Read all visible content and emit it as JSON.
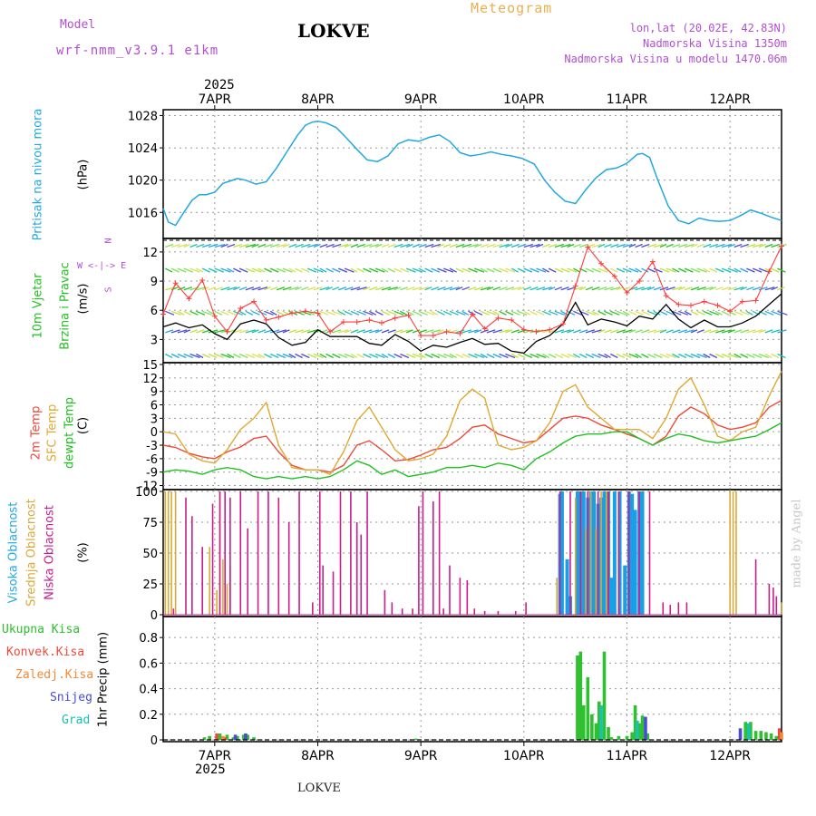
{
  "header": {
    "model_label": "Model",
    "model_name": "wrf-nmm_v3.9.1 e1km",
    "station": "LOKVE",
    "title": "Meteogram",
    "lonlat": "lon,lat (20.02E, 42.83N)",
    "elevation": "Nadmorska Visina 1350m",
    "model_elevation": "Nadmorska Visina u modelu 1470.06m",
    "footer_station": "LOKVE",
    "watermark": "made by Angel",
    "colors": {
      "model": "#b050d0",
      "title": "#e8b050",
      "lonlat": "#b050d0"
    }
  },
  "axis": {
    "year_top": "2025",
    "year_bottom": "2025",
    "date_labels": [
      "7APR",
      "8APR",
      "9APR",
      "10APR",
      "11APR",
      "12APR"
    ]
  },
  "panel_labels": {
    "pressure": {
      "name": "Pritisak na nivou mora",
      "unit": "(hPa)"
    },
    "wind": {
      "name1": "10m Vjetar",
      "name2": "Brzina i Pravac",
      "unit": "(m/s)",
      "compass_n": "N",
      "compass_s": "S",
      "compass_we": "W <-|-> E",
      "compass_left": "W",
      "compass_right": "E"
    },
    "temp": {
      "name1": "2m Temp",
      "name2": "SFC Temp",
      "name3": "dewpt Temp",
      "unit": "(C)"
    },
    "cloud": {
      "name1": "Visoka Oblacnost",
      "name2": "Srednja Oblacnost",
      "name3": "Niska Oblacnost",
      "unit": "(%)"
    },
    "precip": {
      "legend": [
        "Ukupna Kisa",
        "Konvek.Kisa",
        "Zaledj.Kisa",
        "Snijeg",
        "Grad"
      ],
      "unit": "1hr Precip (mm)"
    }
  },
  "chart_data": [
    {
      "type": "line",
      "panel": "pressure",
      "xlabel": "",
      "ylabel": "(hPa)",
      "x_days": [
        6.5,
        6.55,
        6.62,
        6.7,
        6.78,
        6.85,
        6.92,
        7.0,
        7.08,
        7.15,
        7.22,
        7.3,
        7.4,
        7.5,
        7.6,
        7.7,
        7.8,
        7.88,
        7.95,
        8.0,
        8.08,
        8.18,
        8.28,
        8.38,
        8.48,
        8.58,
        8.68,
        8.78,
        8.88,
        8.98,
        9.08,
        9.18,
        9.28,
        9.38,
        9.48,
        9.58,
        9.68,
        9.78,
        9.88,
        9.98,
        10.1,
        10.2,
        10.3,
        10.4,
        10.5,
        10.6,
        10.7,
        10.8,
        10.9,
        11.0,
        11.1,
        11.15,
        11.22,
        11.3,
        11.4,
        11.5,
        11.6,
        11.7,
        11.8,
        11.9,
        12.0,
        12.1,
        12.2,
        12.3,
        12.4,
        12.5
      ],
      "series": [
        {
          "values": [
            1016.5,
            1014.8,
            1014.4,
            1016.0,
            1017.5,
            1018.2,
            1018.2,
            1018.5,
            1019.6,
            1019.9,
            1020.2,
            1020.0,
            1019.5,
            1019.8,
            1021.5,
            1023.5,
            1025.5,
            1026.8,
            1027.2,
            1027.3,
            1027.1,
            1026.5,
            1025.2,
            1023.8,
            1022.5,
            1022.3,
            1023.0,
            1024.5,
            1025.0,
            1024.8,
            1025.3,
            1025.6,
            1024.8,
            1023.4,
            1023.0,
            1023.2,
            1023.5,
            1023.2,
            1023.0,
            1022.7,
            1022.0,
            1020.0,
            1018.5,
            1017.4,
            1017.1,
            1018.8,
            1020.3,
            1021.3,
            1021.5,
            1022.1,
            1023.2,
            1023.3,
            1022.8,
            1020.0,
            1016.8,
            1015.0,
            1014.6,
            1015.3,
            1015.0,
            1014.9,
            1015.0,
            1015.6,
            1016.3,
            1015.9,
            1015.4,
            1015.0
          ]
        }
      ],
      "ylim": [
        1013,
        1028.5
      ],
      "yticks": [
        1016,
        1020,
        1024,
        1028
      ],
      "color": "#22a8e0"
    },
    {
      "type": "line",
      "panel": "wind",
      "ylabel": "(m/s)",
      "x_days": [
        6.5,
        6.62,
        6.75,
        6.88,
        7.0,
        7.12,
        7.25,
        7.38,
        7.5,
        7.62,
        7.75,
        7.88,
        8.0,
        8.12,
        8.25,
        8.38,
        8.5,
        8.62,
        8.75,
        8.88,
        9.0,
        9.12,
        9.25,
        9.38,
        9.5,
        9.62,
        9.75,
        9.88,
        10.0,
        10.12,
        10.25,
        10.38,
        10.5,
        10.62,
        10.75,
        10.88,
        11.0,
        11.12,
        11.25,
        11.38,
        11.5,
        11.62,
        11.75,
        11.88,
        12.0,
        12.12,
        12.25,
        12.38,
        12.5
      ],
      "series": [
        {
          "name": "",
          "color": "#000000",
          "values": [
            4.3,
            4.7,
            4.2,
            4.5,
            3.6,
            3.0,
            4.6,
            5.0,
            4.6,
            3.2,
            2.4,
            2.7,
            4.0,
            3.3,
            3.3,
            3.3,
            2.6,
            2.4,
            3.5,
            2.8,
            1.8,
            2.4,
            2.2,
            2.7,
            3.1,
            2.5,
            2.6,
            1.8,
            1.6,
            2.8,
            3.4,
            4.6,
            6.8,
            4.5,
            5.1,
            4.8,
            4.4,
            5.4,
            5.1,
            6.6,
            5.1,
            4.2,
            5.0,
            4.3,
            4.3,
            4.7,
            5.4,
            6.6,
            7.7
          ]
        },
        {
          "name": "",
          "color": "#ff3b3b",
          "values": [
            5.6,
            8.8,
            7.2,
            9.1,
            5.4,
            3.8,
            6.2,
            6.9,
            5.0,
            5.3,
            5.7,
            5.9,
            5.7,
            3.8,
            4.8,
            4.8,
            5.0,
            4.7,
            5.2,
            5.5,
            3.4,
            3.4,
            3.8,
            3.6,
            5.6,
            4.1,
            5.2,
            5.0,
            4.0,
            3.8,
            4.0,
            4.6,
            8.5,
            12.5,
            10.8,
            9.5,
            7.8,
            9.0,
            11.0,
            7.5,
            6.6,
            6.5,
            6.9,
            6.5,
            5.9,
            6.9,
            7.0,
            10.0,
            12.6
          ]
        }
      ],
      "ylim": [
        0.8,
        13.2
      ],
      "yticks": [
        3,
        6,
        9,
        12
      ]
    },
    {
      "type": "line",
      "panel": "temperature",
      "ylabel": "(C)",
      "x_days": [
        6.5,
        6.62,
        6.75,
        6.88,
        7.0,
        7.12,
        7.25,
        7.38,
        7.5,
        7.62,
        7.75,
        7.88,
        8.0,
        8.12,
        8.25,
        8.38,
        8.5,
        8.62,
        8.75,
        8.88,
        9.0,
        9.12,
        9.25,
        9.38,
        9.5,
        9.62,
        9.75,
        9.88,
        10.0,
        10.12,
        10.25,
        10.38,
        10.5,
        10.62,
        10.75,
        10.88,
        11.0,
        11.12,
        11.25,
        11.38,
        11.5,
        11.62,
        11.75,
        11.88,
        12.0,
        12.12,
        12.25,
        12.38,
        12.5
      ],
      "series": [
        {
          "name": "2m Temp",
          "color": "#ee4a3a",
          "values": [
            -3.0,
            -3.5,
            -4.8,
            -5.6,
            -6.0,
            -4.5,
            -3.4,
            -1.5,
            -1.0,
            -4.5,
            -7.5,
            -8.5,
            -8.5,
            -9.0,
            -7.5,
            -3.0,
            -2.0,
            -4.0,
            -6.5,
            -6.2,
            -5.2,
            -4.0,
            -3.5,
            -1.5,
            1.0,
            1.5,
            -0.5,
            -1.5,
            -2.5,
            -2.0,
            0.5,
            3.0,
            3.5,
            3.0,
            1.5,
            0.5,
            -0.5,
            -1.5,
            -3.0,
            -1.0,
            3.5,
            5.5,
            4.0,
            1.5,
            0.5,
            1.0,
            2.0,
            5.5,
            7.0
          ]
        },
        {
          "name": "SFC Temp",
          "color": "#e0a832",
          "values": [
            0.0,
            -0.5,
            -5.0,
            -6.5,
            -7.0,
            -4.0,
            0.5,
            3.0,
            6.5,
            -3.0,
            -8.0,
            -8.5,
            -8.5,
            -9.5,
            -4.5,
            2.5,
            5.5,
            1.0,
            -4.0,
            -6.5,
            -6.0,
            -5.0,
            -1.0,
            7.0,
            9.5,
            7.5,
            -3.0,
            -4.0,
            -3.5,
            -2.0,
            2.0,
            9.0,
            10.5,
            5.5,
            3.0,
            0.5,
            0.5,
            0.5,
            -1.5,
            3.0,
            9.5,
            12.0,
            6.0,
            -1.0,
            -2.0,
            0.0,
            1.0,
            8.0,
            13.5
          ]
        },
        {
          "name": "dewpt Temp",
          "color": "#22c022",
          "values": [
            -9.0,
            -8.5,
            -8.8,
            -9.5,
            -8.5,
            -8.0,
            -8.5,
            -10.0,
            -10.5,
            -10.0,
            -10.5,
            -10.0,
            -10.5,
            -10.0,
            -8.5,
            -6.5,
            -7.5,
            -9.5,
            -8.5,
            -10.0,
            -9.5,
            -9.0,
            -8.0,
            -8.0,
            -7.5,
            -8.0,
            -7.0,
            -7.5,
            -8.5,
            -6.0,
            -4.5,
            -2.5,
            -1.0,
            -0.5,
            -0.5,
            0.0,
            0.0,
            -1.5,
            -3.0,
            -1.5,
            -0.5,
            -1.0,
            -2.0,
            -2.5,
            -2.0,
            -1.5,
            -1.0,
            0.5,
            2.0
          ]
        }
      ],
      "ylim": [
        -12.5,
        15
      ],
      "yticks": [
        -12,
        -9,
        -6,
        -3,
        0,
        3,
        6,
        9,
        12,
        15
      ]
    },
    {
      "type": "bar",
      "panel": "cloud",
      "ylabel": "(%)",
      "ylim": [
        0,
        100
      ],
      "yticks": [
        0,
        25,
        50,
        75,
        100
      ],
      "series": [
        {
          "name": "Visoka Oblacnost",
          "color": "#1a9ee6",
          "x_days": [
            10.35,
            10.37,
            10.42,
            10.45,
            10.52,
            10.55,
            10.58,
            10.62,
            10.65,
            10.68,
            10.72,
            10.75,
            10.78,
            10.82,
            10.85,
            10.88,
            10.93,
            10.98,
            11.02,
            11.05,
            11.08,
            11.12,
            11.15
          ],
          "values": [
            98,
            100,
            45,
            15,
            100,
            100,
            100,
            95,
            100,
            100,
            90,
            95,
            100,
            100,
            30,
            100,
            100,
            40,
            100,
            98,
            85,
            100,
            100
          ]
        },
        {
          "name": "Srednja Oblacnost",
          "color": "#d8aa3a",
          "x_days": [
            6.52,
            6.55,
            6.58,
            6.62,
            6.95,
            7.02,
            7.05,
            7.08,
            7.12,
            7.15,
            10.32,
            10.5,
            10.55,
            10.6,
            10.65,
            10.7,
            10.75,
            10.8,
            12.0,
            12.03,
            12.06,
            12.5
          ],
          "values": [
            100,
            100,
            100,
            100,
            55,
            20,
            100,
            45,
            25,
            40,
            30,
            95,
            100,
            70,
            100,
            70,
            100,
            100,
            100,
            100,
            100,
            10
          ]
        },
        {
          "name": "Niska Oblacnost",
          "color": "#c81e8c",
          "x_days": [
            6.6,
            6.72,
            6.78,
            6.88,
            6.98,
            7.05,
            7.1,
            7.15,
            7.25,
            7.32,
            7.42,
            7.52,
            7.62,
            7.72,
            7.82,
            7.95,
            8.02,
            8.05,
            8.15,
            8.22,
            8.32,
            8.38,
            8.42,
            8.48,
            8.65,
            8.72,
            8.82,
            8.92,
            8.98,
            9.02,
            9.12,
            9.18,
            9.22,
            9.28,
            9.38,
            9.45,
            9.52,
            9.62,
            9.75,
            9.92,
            10.02,
            10.35,
            10.45,
            10.55,
            10.62,
            10.72,
            10.82,
            10.92,
            11.02,
            11.12,
            11.22,
            11.35,
            11.42,
            11.5,
            11.58,
            12.25,
            12.38,
            12.42,
            12.45
          ],
          "values": [
            5,
            95,
            80,
            55,
            90,
            100,
            100,
            95,
            100,
            70,
            100,
            100,
            95,
            75,
            100,
            10,
            100,
            40,
            35,
            100,
            100,
            75,
            65,
            100,
            20,
            10,
            5,
            5,
            88,
            100,
            92,
            100,
            5,
            40,
            30,
            28,
            5,
            3,
            3,
            3,
            10,
            100,
            100,
            100,
            100,
            100,
            100,
            100,
            100,
            100,
            100,
            10,
            8,
            10,
            10,
            45,
            25,
            22,
            15
          ]
        }
      ]
    },
    {
      "type": "bar",
      "panel": "precip",
      "ylabel": "1hr Precip (mm)",
      "ylim": [
        0,
        0.95
      ],
      "yticks": [
        0,
        0.2,
        0.4,
        0.6,
        0.8
      ],
      "series": [
        {
          "name": "Ukupna Kisa",
          "color": "#2ec02e",
          "x_days": [
            6.9,
            6.95,
            7.05,
            7.12,
            7.18,
            7.22,
            7.28,
            7.32,
            7.38,
            8.95,
            10.52,
            10.55,
            10.58,
            10.62,
            10.66,
            10.7,
            10.73,
            10.78,
            10.82,
            10.85,
            10.92,
            11.0,
            11.05,
            11.08,
            11.12,
            11.15,
            11.2,
            12.15,
            12.2,
            12.25,
            12.3,
            12.35,
            12.4,
            12.45
          ],
          "values": [
            0.02,
            0.03,
            0.05,
            0.04,
            0.02,
            0.03,
            0.04,
            0.04,
            0.02,
            0.01,
            0.66,
            0.69,
            0.27,
            0.49,
            0.2,
            0.13,
            0.3,
            0.69,
            0.1,
            0.02,
            0.03,
            0.03,
            0.06,
            0.27,
            0.13,
            0.19,
            0.05,
            0.14,
            0.14,
            0.07,
            0.07,
            0.06,
            0.05,
            0.03
          ]
        },
        {
          "name": "Konvek.Kisa",
          "color": "#ee4a3a",
          "x_days": [
            7.02,
            7.1,
            12.48
          ],
          "values": [
            0.05,
            0.02,
            0.09
          ]
        },
        {
          "name": "Zaledj.Kisa",
          "color": "#f08a3a",
          "x_days": [
            7.08,
            12.5
          ],
          "values": [
            0.03,
            0.06
          ]
        },
        {
          "name": "Snijeg",
          "color": "#4a4ad8",
          "x_days": [
            7.2,
            7.3,
            11.18,
            12.1
          ],
          "values": [
            0.04,
            0.05,
            0.18,
            0.09
          ]
        },
        {
          "name": "Grad",
          "color": "#1ac0b0",
          "x_days": [
            10.75,
            11.1,
            12.18
          ],
          "values": [
            0.27,
            0.15,
            0.13
          ]
        }
      ]
    }
  ]
}
